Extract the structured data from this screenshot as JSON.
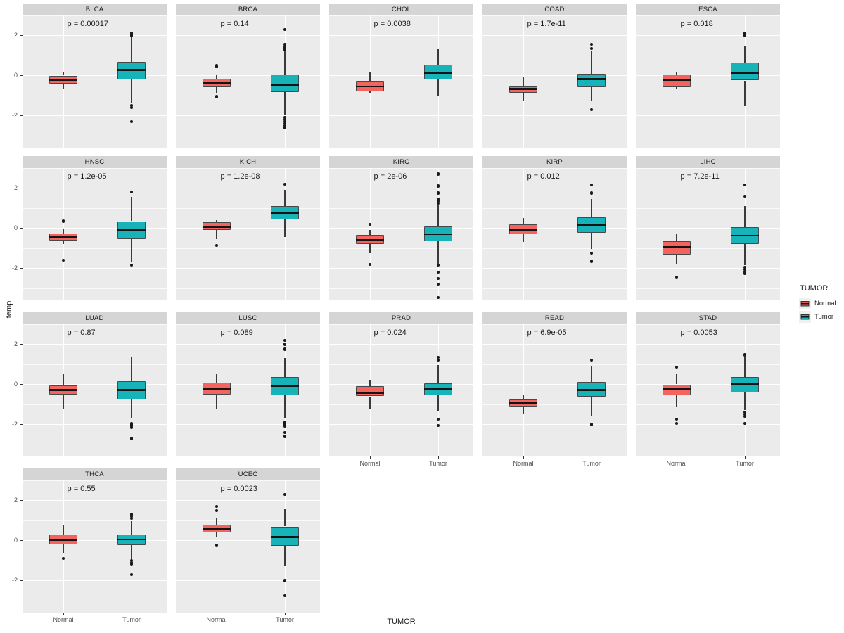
{
  "colors": {
    "normal": "#F4635E",
    "tumor": "#17B3B9",
    "panel_bg": "#EBEBEB",
    "strip_bg": "#D5D5D5",
    "gridline": "#FFFFFF",
    "outlier": "#1A1A1A"
  },
  "chart_data": {
    "type": "boxplot",
    "title": "",
    "xlabel": "TUMOR",
    "ylabel": "temp",
    "x_categories": [
      "Normal",
      "Tumor"
    ],
    "y_ticks": [
      2,
      0,
      -2
    ],
    "y_minor_ticks": [
      3,
      1,
      -1,
      -3
    ],
    "ylim": [
      3.0,
      -3.6
    ],
    "grid": "white major and minor lines on gray panel",
    "layout": {
      "rows": 4,
      "cols": 5,
      "legend_position": "right"
    },
    "legend": {
      "title": "TUMOR",
      "items": [
        {
          "label": "Normal",
          "color": "#F4635E"
        },
        {
          "label": "Tumor",
          "color": "#17B3B9"
        }
      ]
    },
    "facets": [
      {
        "name": "BLCA",
        "p": "p = 0.00017",
        "normal": {
          "lo": -0.7,
          "q1": -0.4,
          "med": -0.2,
          "q3": 0.0,
          "hi": 0.2,
          "out": []
        },
        "tumor": {
          "lo": -1.4,
          "q1": -0.18,
          "med": 0.28,
          "q3": 0.68,
          "hi": 1.9,
          "out": [
            2.1,
            2.0,
            -1.5,
            -1.6,
            -2.3
          ]
        }
      },
      {
        "name": "BRCA",
        "p": "p = 0.14",
        "normal": {
          "lo": -0.85,
          "q1": -0.55,
          "med": -0.37,
          "q3": -0.16,
          "hi": 0.05,
          "out": [
            0.5,
            0.45,
            -1.05
          ]
        },
        "tumor": {
          "lo": -2.0,
          "q1": -0.84,
          "med": -0.45,
          "q3": 0.04,
          "hi": 1.2,
          "out": [
            2.3,
            1.55,
            1.45,
            1.38,
            1.3,
            -2.1,
            -2.2,
            -2.3,
            -2.4,
            -2.5,
            -2.6
          ]
        }
      },
      {
        "name": "CHOL",
        "p": "p = 0.0038",
        "normal": {
          "lo": -0.87,
          "q1": -0.8,
          "med": -0.55,
          "q3": -0.27,
          "hi": 0.17,
          "out": []
        },
        "tumor": {
          "lo": -1.0,
          "q1": -0.2,
          "med": 0.15,
          "q3": 0.55,
          "hi": 1.3,
          "out": []
        }
      },
      {
        "name": "COAD",
        "p": "p = 1.7e-11",
        "normal": {
          "lo": -1.3,
          "q1": -0.85,
          "med": -0.67,
          "q3": -0.5,
          "hi": -0.05,
          "out": []
        },
        "tumor": {
          "lo": -1.3,
          "q1": -0.55,
          "med": -0.18,
          "q3": 0.1,
          "hi": 1.25,
          "out": [
            1.55,
            1.35,
            -1.7
          ]
        }
      },
      {
        "name": "ESCA",
        "p": "p = 0.018",
        "normal": {
          "lo": -0.65,
          "q1": -0.55,
          "med": -0.2,
          "q3": 0.05,
          "hi": 0.15,
          "out": []
        },
        "tumor": {
          "lo": -1.5,
          "q1": -0.25,
          "med": 0.15,
          "q3": 0.65,
          "hi": 1.45,
          "out": [
            2.1,
            2.0
          ]
        }
      },
      {
        "name": "HNSC",
        "p": "p = 1.2e-05",
        "normal": {
          "lo": -0.8,
          "q1": -0.6,
          "med": -0.45,
          "q3": -0.25,
          "hi": -0.05,
          "out": [
            0.35,
            -1.6
          ]
        },
        "tumor": {
          "lo": -1.7,
          "q1": -0.55,
          "med": -0.1,
          "q3": 0.35,
          "hi": 1.55,
          "out": [
            1.8,
            -1.85
          ]
        }
      },
      {
        "name": "KICH",
        "p": "p = 1.2e-08",
        "normal": {
          "lo": -0.55,
          "q1": -0.1,
          "med": 0.08,
          "q3": 0.3,
          "hi": 0.4,
          "out": [
            -0.85
          ]
        },
        "tumor": {
          "lo": -0.45,
          "q1": 0.45,
          "med": 0.78,
          "q3": 1.1,
          "hi": 1.9,
          "out": [
            2.2
          ]
        }
      },
      {
        "name": "KIRC",
        "p": "p = 2e-06",
        "normal": {
          "lo": -1.25,
          "q1": -0.8,
          "med": -0.58,
          "q3": -0.35,
          "hi": -0.1,
          "out": [
            0.2,
            -1.8
          ]
        },
        "tumor": {
          "lo": -1.8,
          "q1": -0.65,
          "med": -0.3,
          "q3": 0.1,
          "hi": 1.15,
          "out": [
            2.7,
            2.1,
            1.75,
            1.45,
            1.35,
            1.25,
            -1.85,
            -2.2,
            -2.5,
            -2.8,
            -3.45
          ]
        }
      },
      {
        "name": "KIRP",
        "p": "p = 0.012",
        "normal": {
          "lo": -0.7,
          "q1": -0.3,
          "med": -0.08,
          "q3": 0.2,
          "hi": 0.5,
          "out": []
        },
        "tumor": {
          "lo": -1.05,
          "q1": -0.22,
          "med": 0.15,
          "q3": 0.53,
          "hi": 1.45,
          "out": [
            2.15,
            1.75,
            -1.25,
            -1.65
          ]
        }
      },
      {
        "name": "LIHC",
        "p": "p = 7.2e-11",
        "normal": {
          "lo": -1.8,
          "q1": -1.3,
          "med": -0.95,
          "q3": -0.65,
          "hi": -0.3,
          "out": [
            -2.45
          ]
        },
        "tumor": {
          "lo": -1.85,
          "q1": -0.8,
          "med": -0.37,
          "q3": 0.05,
          "hi": 1.1,
          "out": [
            2.15,
            1.6,
            -1.95,
            -2.05,
            -2.15,
            -2.25
          ]
        }
      },
      {
        "name": "LUAD",
        "p": "p = 0.87",
        "normal": {
          "lo": -1.2,
          "q1": -0.5,
          "med": -0.28,
          "q3": -0.05,
          "hi": 0.5,
          "out": []
        },
        "tumor": {
          "lo": -1.7,
          "q1": -0.75,
          "med": -0.28,
          "q3": 0.17,
          "hi": 1.4,
          "out": [
            -1.95,
            -2.0,
            -2.05,
            -2.1,
            -2.15,
            -2.7
          ]
        }
      },
      {
        "name": "LUSC",
        "p": "p = 0.089",
        "normal": {
          "lo": -1.2,
          "q1": -0.5,
          "med": -0.22,
          "q3": 0.08,
          "hi": 0.5,
          "out": []
        },
        "tumor": {
          "lo": -1.7,
          "q1": -0.55,
          "med": -0.08,
          "q3": 0.38,
          "hi": 1.3,
          "out": [
            2.2,
            2.0,
            1.75,
            -1.9,
            -1.95,
            -2.0,
            -2.1,
            -2.4,
            -2.6
          ]
        }
      },
      {
        "name": "PRAD",
        "p": "p = 0.024",
        "normal": {
          "lo": -1.2,
          "q1": -0.6,
          "med": -0.42,
          "q3": -0.1,
          "hi": 0.22,
          "out": []
        },
        "tumor": {
          "lo": -1.35,
          "q1": -0.55,
          "med": -0.22,
          "q3": 0.05,
          "hi": 0.95,
          "out": [
            1.35,
            1.2,
            -1.75,
            -2.05
          ]
        }
      },
      {
        "name": "READ",
        "p": "p = 6.9e-05",
        "normal": {
          "lo": -1.45,
          "q1": -1.1,
          "med": -0.92,
          "q3": -0.75,
          "hi": -0.55,
          "out": []
        },
        "tumor": {
          "lo": -1.55,
          "q1": -0.6,
          "med": -0.28,
          "q3": 0.12,
          "hi": 0.9,
          "out": [
            1.2,
            -2.0
          ]
        }
      },
      {
        "name": "STAD",
        "p": "p = 0.0053",
        "normal": {
          "lo": -1.1,
          "q1": -0.55,
          "med": -0.2,
          "q3": 0.0,
          "hi": 0.5,
          "out": [
            0.85,
            -1.75,
            -1.95
          ]
        },
        "tumor": {
          "lo": -1.3,
          "q1": -0.4,
          "med": 0.0,
          "q3": 0.38,
          "hi": 1.4,
          "out": [
            1.5,
            1.45,
            -1.4,
            -1.5,
            -1.6,
            -1.95
          ]
        }
      },
      {
        "name": "THCA",
        "p": "p = 0.55",
        "normal": {
          "lo": -0.6,
          "q1": -0.2,
          "med": 0.04,
          "q3": 0.3,
          "hi": 0.75,
          "out": [
            -0.9
          ]
        },
        "tumor": {
          "lo": -0.95,
          "q1": -0.22,
          "med": 0.05,
          "q3": 0.3,
          "hi": 0.98,
          "out": [
            1.3,
            1.2,
            1.1,
            -1.0,
            -1.1,
            -1.2,
            -1.7
          ]
        }
      },
      {
        "name": "UCEC",
        "p": "p = 0.0023",
        "normal": {
          "lo": 0.15,
          "q1": 0.4,
          "med": 0.58,
          "q3": 0.78,
          "hi": 1.1,
          "out": [
            1.7,
            1.5,
            -0.25
          ]
        },
        "tumor": {
          "lo": -1.3,
          "q1": -0.25,
          "med": 0.18,
          "q3": 0.7,
          "hi": 1.6,
          "out": [
            2.3,
            -2.0,
            -2.75
          ]
        }
      }
    ]
  }
}
